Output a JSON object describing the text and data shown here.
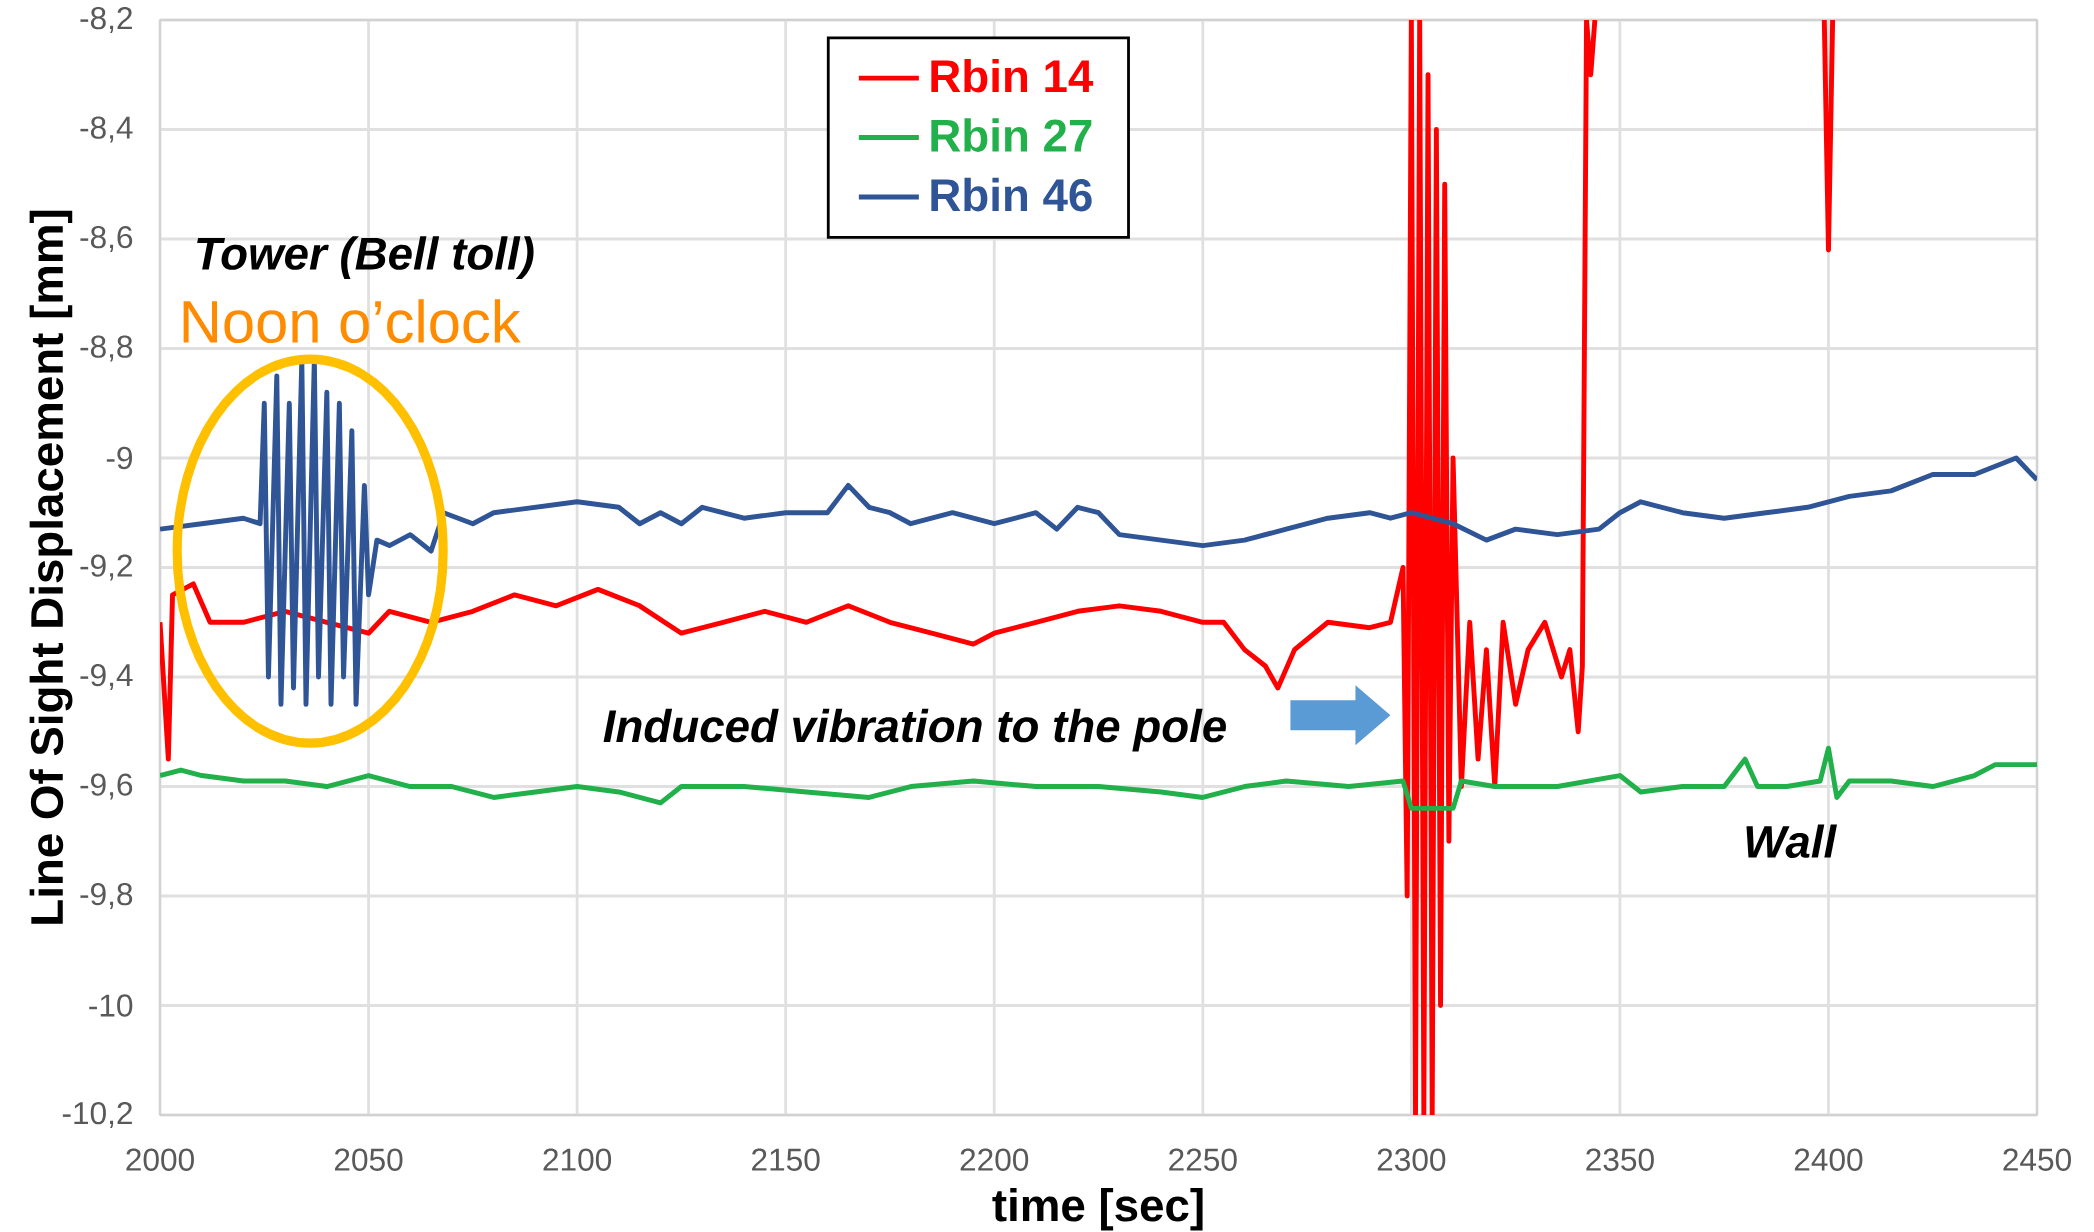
{
  "chart_data": {
    "type": "line",
    "xlabel": "time [sec]",
    "ylabel": "Line Of Sight Displacement [mm]",
    "xlim": [
      2000,
      2450
    ],
    "xticks": [
      2000,
      2050,
      2100,
      2150,
      2200,
      2250,
      2300,
      2350,
      2400,
      2450
    ],
    "ylim": [
      -10.2,
      -8.2
    ],
    "yticks": [
      {
        "value": -10.2,
        "label": "-10,2"
      },
      -10,
      {
        "value": -9.8,
        "label": "-9,8"
      },
      {
        "value": -9.6,
        "label": "-9,6"
      },
      {
        "value": -9.4,
        "label": "-9,4"
      },
      {
        "value": -9.2,
        "label": "-9,2"
      },
      -9,
      {
        "value": -8.8,
        "label": "-8,8"
      },
      {
        "value": -8.6,
        "label": "-8,6"
      },
      {
        "value": -8.4,
        "label": "-8,4"
      },
      {
        "value": -8.2,
        "label": "-8,2"
      }
    ],
    "grid": true,
    "legend": "top",
    "annotations": [
      "Tower (Bell toll)",
      "Noon o’clock",
      "Induced vibration to the pole",
      "Wall"
    ],
    "series": [
      {
        "name": "Rbin 14",
        "color": "#ff0000",
        "x": [
          2000,
          2002,
          2003,
          2008,
          2012,
          2020,
          2030,
          2040,
          2050,
          2055,
          2065,
          2075,
          2085,
          2095,
          2105,
          2115,
          2125,
          2135,
          2145,
          2155,
          2165,
          2175,
          2185,
          2195,
          2200,
          2210,
          2220,
          2230,
          2240,
          2250,
          2255,
          2260,
          2265,
          2268,
          2272,
          2280,
          2290,
          2295,
          2298,
          2299,
          2300,
          2301,
          2302,
          2303,
          2304,
          2305,
          2306,
          2307,
          2308,
          2309,
          2310,
          2312,
          2314,
          2316,
          2318,
          2320,
          2322,
          2325,
          2328,
          2332,
          2336,
          2338,
          2340,
          2341,
          2342,
          2343,
          2344,
          2345,
          2399,
          2400,
          2401
        ],
        "values": [
          -9.3,
          -9.55,
          -9.25,
          -9.23,
          -9.3,
          -9.3,
          -9.28,
          -9.3,
          -9.32,
          -9.28,
          -9.3,
          -9.28,
          -9.25,
          -9.27,
          -9.24,
          -9.27,
          -9.32,
          -9.3,
          -9.28,
          -9.3,
          -9.27,
          -9.3,
          -9.32,
          -9.34,
          -9.32,
          -9.3,
          -9.28,
          -9.27,
          -9.28,
          -9.3,
          -9.3,
          -9.35,
          -9.38,
          -9.42,
          -9.35,
          -9.3,
          -9.31,
          -9.3,
          -9.2,
          -9.8,
          -8.2,
          -10.2,
          -8.2,
          -10.2,
          -8.3,
          -10.2,
          -8.4,
          -10.0,
          -8.5,
          -9.7,
          -9.0,
          -9.6,
          -9.3,
          -9.55,
          -9.35,
          -9.6,
          -9.3,
          -9.45,
          -9.35,
          -9.3,
          -9.4,
          -9.35,
          -9.5,
          -9.38,
          -8.2,
          -8.3,
          -8.2,
          null,
          -8.2,
          -8.62,
          -8.2
        ]
      },
      {
        "name": "Rbin 27",
        "color": "#22b04b",
        "x": [
          2000,
          2005,
          2010,
          2020,
          2030,
          2040,
          2050,
          2060,
          2070,
          2080,
          2090,
          2100,
          2110,
          2120,
          2125,
          2140,
          2155,
          2170,
          2180,
          2195,
          2210,
          2225,
          2240,
          2250,
          2260,
          2270,
          2285,
          2298,
          2300,
          2310,
          2312,
          2320,
          2335,
          2350,
          2355,
          2365,
          2375,
          2380,
          2383,
          2390,
          2398,
          2400,
          2402,
          2405,
          2415,
          2425,
          2435,
          2440,
          2450
        ],
        "values": [
          -9.58,
          -9.57,
          -9.58,
          -9.59,
          -9.59,
          -9.6,
          -9.58,
          -9.6,
          -9.6,
          -9.62,
          -9.61,
          -9.6,
          -9.61,
          -9.63,
          -9.6,
          -9.6,
          -9.61,
          -9.62,
          -9.6,
          -9.59,
          -9.6,
          -9.6,
          -9.61,
          -9.62,
          -9.6,
          -9.59,
          -9.6,
          -9.59,
          -9.64,
          -9.64,
          -9.59,
          -9.6,
          -9.6,
          -9.58,
          -9.61,
          -9.6,
          -9.6,
          -9.55,
          -9.6,
          -9.6,
          -9.59,
          -9.53,
          -9.62,
          -9.59,
          -9.59,
          -9.6,
          -9.58,
          -9.56,
          -9.56
        ]
      },
      {
        "name": "Rbin 46",
        "color": "#2f5597",
        "x": [
          2000,
          2010,
          2020,
          2024,
          2025,
          2026,
          2028,
          2029,
          2031,
          2032,
          2034,
          2035,
          2037,
          2038,
          2040,
          2041,
          2043,
          2044,
          2046,
          2047,
          2049,
          2050,
          2052,
          2055,
          2060,
          2065,
          2068,
          2075,
          2080,
          2090,
          2100,
          2110,
          2115,
          2120,
          2125,
          2130,
          2140,
          2150,
          2160,
          2165,
          2170,
          2175,
          2180,
          2190,
          2200,
          2210,
          2215,
          2220,
          2225,
          2230,
          2240,
          2250,
          2260,
          2270,
          2280,
          2290,
          2295,
          2300,
          2305,
          2310,
          2318,
          2325,
          2335,
          2345,
          2350,
          2355,
          2365,
          2375,
          2385,
          2395,
          2405,
          2415,
          2425,
          2435,
          2445,
          2450
        ],
        "values": [
          -9.13,
          -9.12,
          -9.11,
          -9.12,
          -8.9,
          -9.4,
          -8.85,
          -9.45,
          -8.9,
          -9.42,
          -8.82,
          -9.45,
          -8.82,
          -9.4,
          -8.88,
          -9.45,
          -8.9,
          -9.4,
          -8.95,
          -9.45,
          -9.05,
          -9.25,
          -9.15,
          -9.16,
          -9.14,
          -9.17,
          -9.1,
          -9.12,
          -9.1,
          -9.09,
          -9.08,
          -9.09,
          -9.12,
          -9.1,
          -9.12,
          -9.09,
          -9.11,
          -9.1,
          -9.1,
          -9.05,
          -9.09,
          -9.1,
          -9.12,
          -9.1,
          -9.12,
          -9.1,
          -9.13,
          -9.09,
          -9.1,
          -9.14,
          -9.15,
          -9.16,
          -9.15,
          -9.13,
          -9.11,
          -9.1,
          -9.11,
          -9.1,
          -9.11,
          -9.12,
          -9.15,
          -9.13,
          -9.14,
          -9.13,
          -9.1,
          -9.08,
          -9.1,
          -9.11,
          -9.1,
          -9.09,
          -9.07,
          -9.06,
          -9.03,
          -9.03,
          -9.0,
          -9.04
        ]
      }
    ]
  }
}
